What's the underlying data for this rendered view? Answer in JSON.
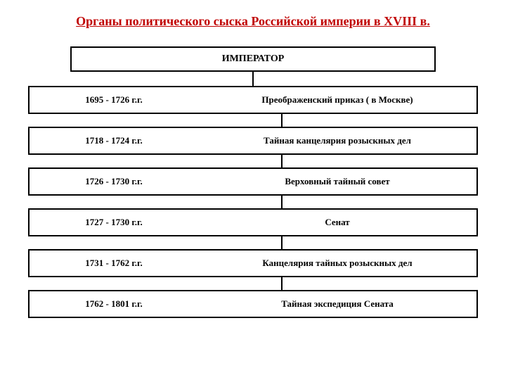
{
  "title": "Органы политического сыска Российской империи в XVIII в.",
  "emperor": "ИМПЕРАТОР",
  "rows": [
    {
      "period": "1695 - 1726 г.г.",
      "body": "Преображенский приказ ( в Москве)"
    },
    {
      "period": "1718 - 1724 г.г.",
      "body": "Тайная  канцелярия розыскных дел"
    },
    {
      "period": "1726 - 1730 г.г.",
      "body": "Верховный тайный совет"
    },
    {
      "period": "1727 - 1730 г.г.",
      "body": "Сенат"
    },
    {
      "period": "1731 - 1762 г.г.",
      "body": "Канцелярия тайных розыскных дел"
    },
    {
      "period": "1762 - 1801 г.г.",
      "body": "Тайная экспедиция Сената"
    }
  ],
  "colors": {
    "title_color": "#c00000",
    "border_color": "#000000",
    "background": "#ffffff"
  },
  "layout": {
    "type": "flowchart",
    "box_border_width": 2,
    "title_fontsize": 18,
    "cell_fontsize": 13,
    "emperor_fontsize": 14
  }
}
